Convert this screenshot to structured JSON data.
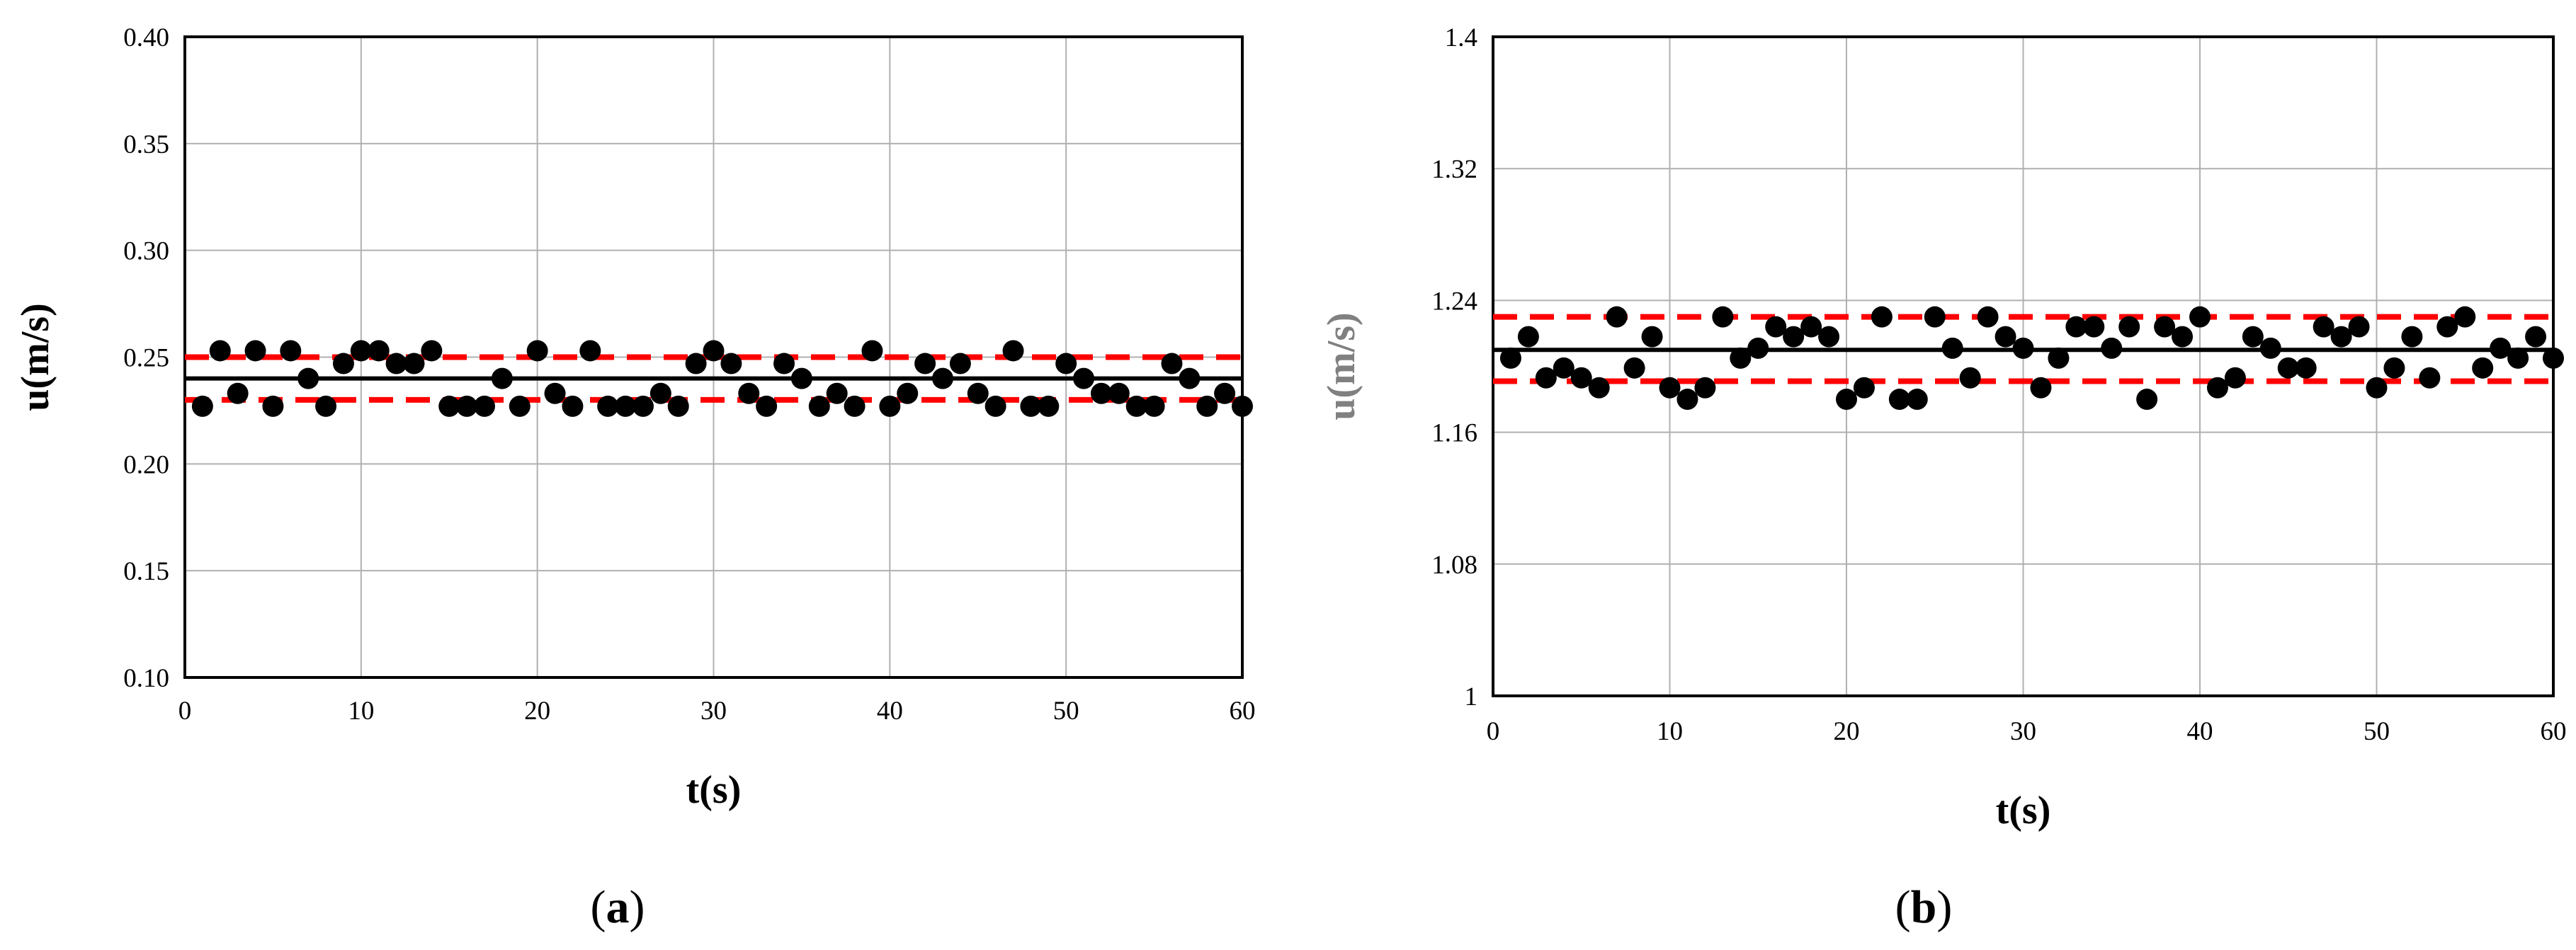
{
  "chart_data": [
    {
      "type": "scatter",
      "panel": "a",
      "xlabel": "t(s)",
      "ylabel": "u(m/s)",
      "xlim": [
        0,
        60
      ],
      "ylim": [
        0.1,
        0.4
      ],
      "xticks": [
        0,
        10,
        20,
        30,
        40,
        50,
        60
      ],
      "yticks": [
        "0.10",
        "0.15",
        "0.20",
        "0.25",
        "0.30",
        "0.35",
        "0.40"
      ],
      "grid": true,
      "ylabel_color": "#000000",
      "mean_line": {
        "value": 0.24,
        "color": "#000000",
        "style": "solid"
      },
      "band_lines": [
        {
          "value": 0.25,
          "color": "#ff0000",
          "style": "dashed"
        },
        {
          "value": 0.23,
          "color": "#ff0000",
          "style": "dashed"
        }
      ],
      "series": [
        {
          "x": [
            1,
            2,
            3,
            4,
            5,
            6,
            7,
            8,
            9,
            10,
            11,
            12,
            13,
            14,
            15,
            16,
            17,
            18,
            19,
            20,
            21,
            22,
            23,
            24,
            25,
            26,
            27,
            28,
            29,
            30,
            31,
            32,
            33,
            34,
            35,
            36,
            37,
            38,
            39,
            40,
            41,
            42,
            43,
            44,
            45,
            46,
            47,
            48,
            49,
            50,
            51,
            52,
            53,
            54,
            55,
            56,
            57,
            58,
            59,
            60
          ],
          "y": [
            0.227,
            0.253,
            0.233,
            0.253,
            0.227,
            0.253,
            0.24,
            0.227,
            0.247,
            0.253,
            0.253,
            0.247,
            0.247,
            0.253,
            0.227,
            0.227,
            0.227,
            0.24,
            0.227,
            0.253,
            0.233,
            0.227,
            0.253,
            0.227,
            0.227,
            0.227,
            0.233,
            0.227,
            0.247,
            0.253,
            0.247,
            0.233,
            0.227,
            0.247,
            0.24,
            0.227,
            0.233,
            0.227,
            0.253,
            0.227,
            0.233,
            0.247,
            0.24,
            0.247,
            0.233,
            0.227,
            0.253,
            0.227,
            0.227,
            0.247,
            0.24,
            0.233,
            0.233,
            0.227,
            0.227,
            0.247,
            0.24,
            0.227,
            0.233,
            0.227
          ],
          "color": "#000000"
        }
      ]
    },
    {
      "type": "scatter",
      "panel": "b",
      "xlabel": "t(s)",
      "ylabel": "u(m/s)",
      "xlim": [
        0,
        60
      ],
      "ylim": [
        1.0,
        1.4
      ],
      "xticks": [
        0,
        10,
        20,
        30,
        40,
        50,
        60
      ],
      "yticks": [
        "1",
        "1.08",
        "1.16",
        "1.24",
        "1.32",
        "1.4"
      ],
      "grid": true,
      "ylabel_color": "#808080",
      "mean_line": {
        "value": 1.21,
        "color": "#000000",
        "style": "solid"
      },
      "band_lines": [
        {
          "value": 1.23,
          "color": "#ff0000",
          "style": "dashed"
        },
        {
          "value": 1.191,
          "color": "#ff0000",
          "style": "dashed"
        }
      ],
      "series": [
        {
          "x": [
            1,
            2,
            3,
            4,
            5,
            6,
            7,
            8,
            9,
            10,
            11,
            12,
            13,
            14,
            15,
            16,
            17,
            18,
            19,
            20,
            21,
            22,
            23,
            24,
            25,
            26,
            27,
            28,
            29,
            30,
            31,
            32,
            33,
            34,
            35,
            36,
            37,
            38,
            39,
            40,
            41,
            42,
            43,
            44,
            45,
            46,
            47,
            48,
            49,
            50,
            51,
            52,
            53,
            54,
            55,
            56,
            57,
            58,
            59,
            60
          ],
          "y": [
            1.205,
            1.218,
            1.193,
            1.199,
            1.193,
            1.187,
            1.23,
            1.199,
            1.218,
            1.187,
            1.18,
            1.187,
            1.23,
            1.205,
            1.211,
            1.224,
            1.218,
            1.224,
            1.218,
            1.18,
            1.187,
            1.23,
            1.18,
            1.18,
            1.23,
            1.211,
            1.193,
            1.23,
            1.218,
            1.211,
            1.187,
            1.205,
            1.224,
            1.224,
            1.211,
            1.224,
            1.18,
            1.224,
            1.218,
            1.23,
            1.187,
            1.193,
            1.218,
            1.211,
            1.199,
            1.199,
            1.224,
            1.218,
            1.224,
            1.187,
            1.199,
            1.218,
            1.193,
            1.224,
            1.23,
            1.199,
            1.211,
            1.205,
            1.218,
            1.205
          ],
          "color": "#000000"
        }
      ]
    }
  ],
  "panel_labels": {
    "a": {
      "open": "(",
      "letter": "a",
      "close": ")"
    },
    "b": {
      "open": "(",
      "letter": "b",
      "close": ")"
    }
  }
}
